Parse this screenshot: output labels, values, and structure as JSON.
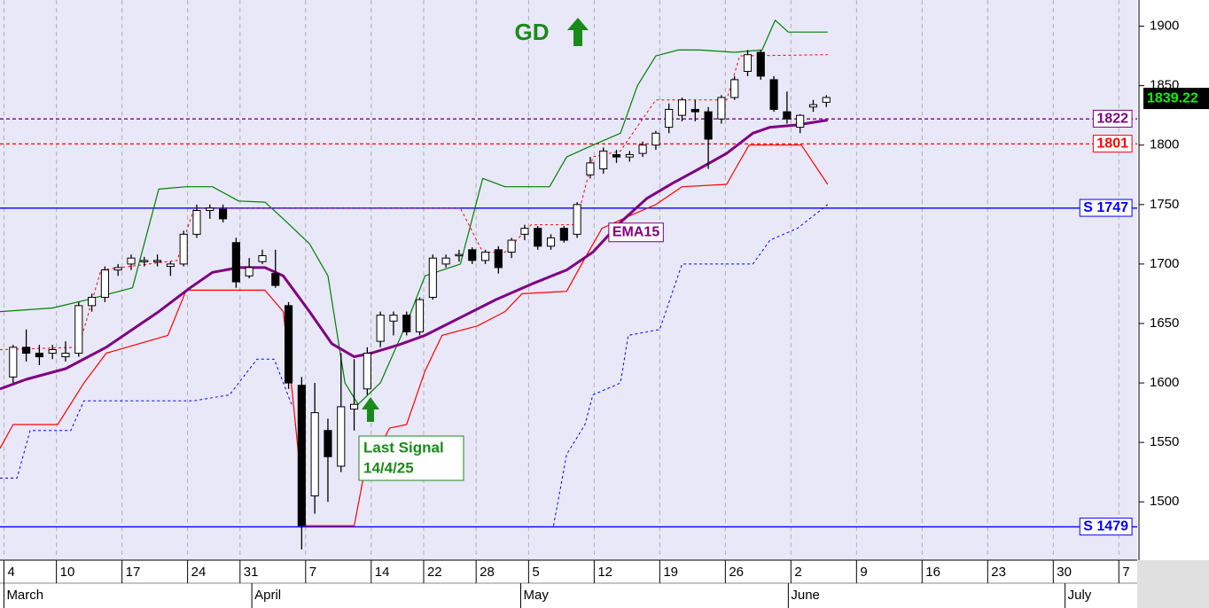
{
  "chart_data": {
    "type": "candlestick",
    "title": "GD",
    "xlim": [
      -0.3,
      86.4
    ],
    "xticks": [
      {
        "value": 0,
        "label": "4"
      },
      {
        "value": 4,
        "label": "10"
      },
      {
        "value": 9,
        "label": "17"
      },
      {
        "value": 14,
        "label": "24"
      },
      {
        "value": 18,
        "label": "31"
      },
      {
        "value": 23,
        "label": "7"
      },
      {
        "value": 28,
        "label": "14"
      },
      {
        "value": 32,
        "label": "22"
      },
      {
        "value": 36,
        "label": "28"
      },
      {
        "value": 40,
        "label": "5"
      },
      {
        "value": 45,
        "label": "12"
      },
      {
        "value": 50,
        "label": "19"
      },
      {
        "value": 55,
        "label": "26"
      },
      {
        "value": 60,
        "label": "2"
      },
      {
        "value": 65,
        "label": "9"
      },
      {
        "value": 70,
        "label": "16"
      },
      {
        "value": 75,
        "label": "23"
      },
      {
        "value": 80,
        "label": "30"
      },
      {
        "value": 85,
        "label": "7"
      }
    ],
    "month_ticks": [
      {
        "value": 0,
        "label": "March"
      },
      {
        "value": 18.9,
        "label": "April"
      },
      {
        "value": 39.4,
        "label": "May"
      },
      {
        "value": 59.8,
        "label": "June"
      },
      {
        "value": 80.9,
        "label": "July"
      }
    ],
    "ylim": [
      1451,
      1922
    ],
    "yticks": [
      1500,
      1550,
      1600,
      1650,
      1700,
      1750,
      1800,
      1850,
      1900
    ],
    "grid": true,
    "up_color": "#ffffff",
    "down_color": "#000000",
    "candles": {
      "open": [
        1605,
        1630,
        1625,
        1625,
        1622,
        1625,
        1665,
        1672,
        1695,
        1700,
        1702,
        1702,
        1698,
        1700,
        1725,
        1745,
        1746,
        1718,
        1690,
        1702,
        1692,
        1665,
        1598,
        1505,
        1560,
        1530,
        1578,
        1595,
        1635,
        1652,
        1657,
        1643,
        1672,
        1700,
        1707,
        1712,
        1703,
        1712,
        1710,
        1725,
        1730,
        1715,
        1730,
        1725,
        1775,
        1780,
        1792,
        1790,
        1793,
        1800,
        1815,
        1825,
        1830,
        1828,
        1822,
        1840,
        1862,
        1878,
        1855,
        1828,
        1815,
        1832,
        1836
      ],
      "high": [
        1632,
        1645,
        1632,
        1632,
        1635,
        1668,
        1675,
        1698,
        1700,
        1708,
        1706,
        1708,
        1702,
        1728,
        1750,
        1750,
        1750,
        1722,
        1705,
        1712,
        1712,
        1668,
        1605,
        1600,
        1570,
        1625,
        1620,
        1630,
        1660,
        1660,
        1660,
        1672,
        1708,
        1708,
        1712,
        1714,
        1712,
        1715,
        1722,
        1733,
        1732,
        1725,
        1732,
        1752,
        1790,
        1798,
        1796,
        1795,
        1803,
        1812,
        1835,
        1840,
        1838,
        1832,
        1842,
        1858,
        1880,
        1880,
        1858,
        1845,
        1826,
        1838,
        1842
      ],
      "low": [
        1600,
        1618,
        1615,
        1620,
        1618,
        1622,
        1660,
        1668,
        1690,
        1695,
        1698,
        1698,
        1690,
        1698,
        1722,
        1738,
        1735,
        1680,
        1688,
        1700,
        1680,
        1595,
        1460,
        1490,
        1500,
        1525,
        1560,
        1590,
        1630,
        1640,
        1640,
        1640,
        1670,
        1697,
        1702,
        1700,
        1700,
        1692,
        1705,
        1720,
        1712,
        1712,
        1718,
        1722,
        1772,
        1776,
        1785,
        1786,
        1790,
        1796,
        1810,
        1820,
        1820,
        1780,
        1818,
        1838,
        1858,
        1855,
        1828,
        1818,
        1810,
        1828,
        1832
      ],
      "close": [
        1630,
        1625,
        1622,
        1628,
        1625,
        1665,
        1672,
        1695,
        1697,
        1705,
        1703,
        1703,
        1700,
        1725,
        1745,
        1747,
        1738,
        1685,
        1697,
        1707,
        1682,
        1600,
        1480,
        1575,
        1538,
        1580,
        1582,
        1625,
        1657,
        1657,
        1643,
        1670,
        1705,
        1705,
        1708,
        1703,
        1710,
        1697,
        1720,
        1730,
        1715,
        1722,
        1720,
        1750,
        1785,
        1795,
        1790,
        1792,
        1800,
        1810,
        1830,
        1838,
        1828,
        1805,
        1840,
        1855,
        1876,
        1858,
        1830,
        1822,
        1825,
        1834,
        1840
      ]
    },
    "lines": [
      {
        "color": "#008000",
        "width": 1.2,
        "dash": false,
        "x": [
          -0.3,
          3.7,
          6.4,
          9.8,
          11.8,
          13.9,
          15.9,
          17.9,
          19.9,
          21.3,
          23.3,
          24.7,
          26.0,
          27.0,
          28.7,
          30.7,
          32.1,
          34.8,
          36.5,
          38.2,
          41.6,
          42.9,
          44.9,
          47.0,
          48.3,
          49.7,
          51.4,
          53.0,
          55.7,
          57.8,
          58.8,
          59.8,
          62.8
        ],
        "values": [
          1660,
          1663,
          1670,
          1680,
          1763,
          1765,
          1765,
          1753,
          1752,
          1738,
          1717,
          1690,
          1600,
          1582,
          1600,
          1650,
          1690,
          1700,
          1772,
          1765,
          1765,
          1790,
          1800,
          1810,
          1850,
          1875,
          1880,
          1880,
          1878,
          1880,
          1905,
          1895,
          1895
        ]
      },
      {
        "color": "#ff0000",
        "width": 1.2,
        "dash": false,
        "x": [
          -0.3,
          0.7,
          4.1,
          6.1,
          7.8,
          12.5,
          13.9,
          17.2,
          19.9,
          21.3,
          22.0,
          23.0,
          26.7,
          27.4,
          29.4,
          30.7,
          32.1,
          33.4,
          36.1,
          38.2,
          39.5,
          42.9,
          44.3,
          45.6,
          47.6,
          49.7,
          51.7,
          55.1,
          56.8,
          60.8,
          62.8
        ],
        "values": [
          1545,
          1565,
          1565,
          1600,
          1625,
          1640,
          1678,
          1678,
          1678,
          1660,
          1590,
          1480,
          1480,
          1520,
          1562,
          1565,
          1610,
          1640,
          1648,
          1660,
          1675,
          1677,
          1705,
          1730,
          1740,
          1750,
          1765,
          1767,
          1800,
          1800,
          1767
        ]
      },
      {
        "color": "#ff0000",
        "width": 1,
        "dash": true,
        "x": [
          -0.3,
          5.7,
          7.4,
          13.2,
          14.5,
          34.8,
          36.5,
          38.2,
          40.2,
          43.6,
          44.9,
          47.0,
          49.7,
          55.1,
          56.1,
          62.8
        ],
        "values": [
          1628,
          1630,
          1695,
          1703,
          1747,
          1747,
          1710,
          1710,
          1733,
          1733,
          1790,
          1795,
          1838,
          1838,
          1875,
          1876
        ]
      },
      {
        "color": "#0000ff",
        "width": 1,
        "dash": true,
        "x": [
          -0.3,
          1.0,
          2.0,
          5.1,
          6.1,
          14.5,
          17.2,
          19.3,
          20.6,
          22.0,
          30.0,
          41.9,
          42.9,
          44.3,
          44.9,
          47.0,
          47.6,
          50.0,
          51.7,
          57.1,
          58.4,
          60.5,
          62.8
        ],
        "values": [
          1520,
          1520,
          1560,
          1560,
          1585,
          1585,
          1590,
          1620,
          1620,
          1580,
          null,
          1480,
          1540,
          1565,
          1590,
          1600,
          1640,
          1645,
          1700,
          1700,
          1720,
          1730,
          1750
        ]
      },
      {
        "name": "EMA15",
        "color": "#800080",
        "width": 3,
        "dash": false,
        "x": [
          -0.3,
          1.7,
          4.7,
          7.8,
          11.8,
          14.2,
          15.9,
          17.9,
          19.9,
          21.3,
          23.3,
          25.0,
          26.7,
          28.0,
          30.1,
          32.1,
          34.8,
          37.5,
          40.2,
          42.9,
          44.9,
          47.0,
          49.0,
          51.0,
          53.0,
          55.1,
          57.1,
          58.4,
          60.5,
          62.8
        ],
        "values": [
          1595,
          1603,
          1612,
          1630,
          1660,
          1680,
          1693,
          1697,
          1697,
          1690,
          1660,
          1633,
          1622,
          1625,
          1632,
          1640,
          1655,
          1670,
          1683,
          1695,
          1710,
          1735,
          1755,
          1768,
          1780,
          1793,
          1810,
          1815,
          1817,
          1821
        ]
      }
    ],
    "levels": [
      {
        "label": "1822",
        "value": 1822,
        "color": "#800080",
        "dash": true
      },
      {
        "label": "1801",
        "value": 1801,
        "color": "#ff0000",
        "dash": true
      },
      {
        "label": "S 1747",
        "value": 1747,
        "color": "#0000ff",
        "dash": false
      },
      {
        "label": "S 1479",
        "value": 1479,
        "color": "#0000ff",
        "dash": false
      }
    ],
    "last_price": {
      "label": "1839.22",
      "value": 1839.22
    },
    "signal_label": [
      "Last Signal",
      "14/4/25"
    ]
  }
}
